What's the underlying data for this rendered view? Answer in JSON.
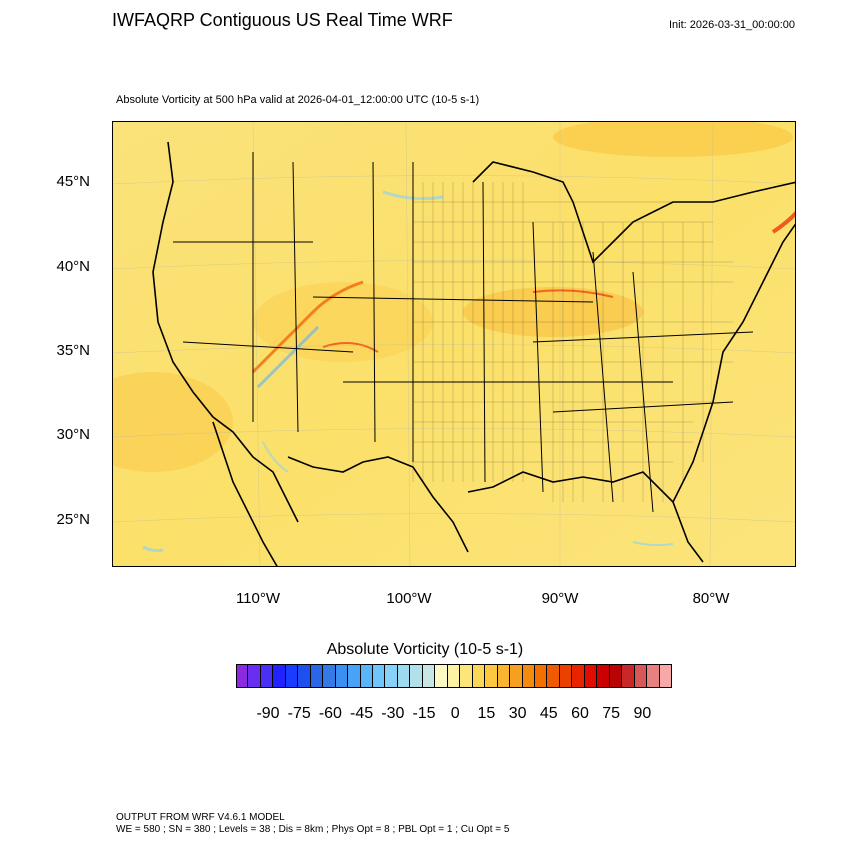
{
  "header": {
    "title": "IWFAQRP Contiguous US Real Time WRF",
    "init": "Init: 2026-03-31_00:00:00",
    "subtitle": "Absolute Vorticity at 500 hPa valid at 2026-04-01_12:00:00 UTC   (10-5 s-1)"
  },
  "map": {
    "lat_labels": [
      "45°N",
      "40°N",
      "35°N",
      "30°N",
      "25°N"
    ],
    "lon_labels": [
      "110°W",
      "100°W",
      "90°W",
      "80°W"
    ],
    "background_color": "#fbe06a",
    "border_color": "#000000"
  },
  "colorbar": {
    "title": "Absolute Vorticity  (10-5 s-1)",
    "tick_labels": [
      "-90",
      "-75",
      "-60",
      "-45",
      "-30",
      "-15",
      "0",
      "15",
      "30",
      "45",
      "60",
      "75",
      "90"
    ],
    "colors": [
      "#8a2be2",
      "#6a2ef0",
      "#4b2ff5",
      "#2222ff",
      "#1a3cff",
      "#1e50f0",
      "#2a66e8",
      "#337ae6",
      "#3a8ff0",
      "#48a2f5",
      "#5ab4f8",
      "#6ec6fa",
      "#86d2f8",
      "#9cdaf0",
      "#b2e0ea",
      "#c8e6e4",
      "#fdf9c4",
      "#fdf2a4",
      "#fce57a",
      "#fcd858",
      "#fbc840",
      "#f9b530",
      "#f7a020",
      "#f58a10",
      "#f37000",
      "#f05a00",
      "#ec4000",
      "#e82400",
      "#e00c00",
      "#cc0000",
      "#b80404",
      "#c82828",
      "#d85858",
      "#e88080",
      "#f8a8a8"
    ]
  },
  "footer": {
    "line1": "OUTPUT FROM WRF V4.6.1 MODEL",
    "line2": "WE = 580 ; SN = 380 ; Levels = 38 ; Dis = 8km ; Phys Opt = 8 ; PBL Opt = 1 ; Cu Opt = 5"
  }
}
